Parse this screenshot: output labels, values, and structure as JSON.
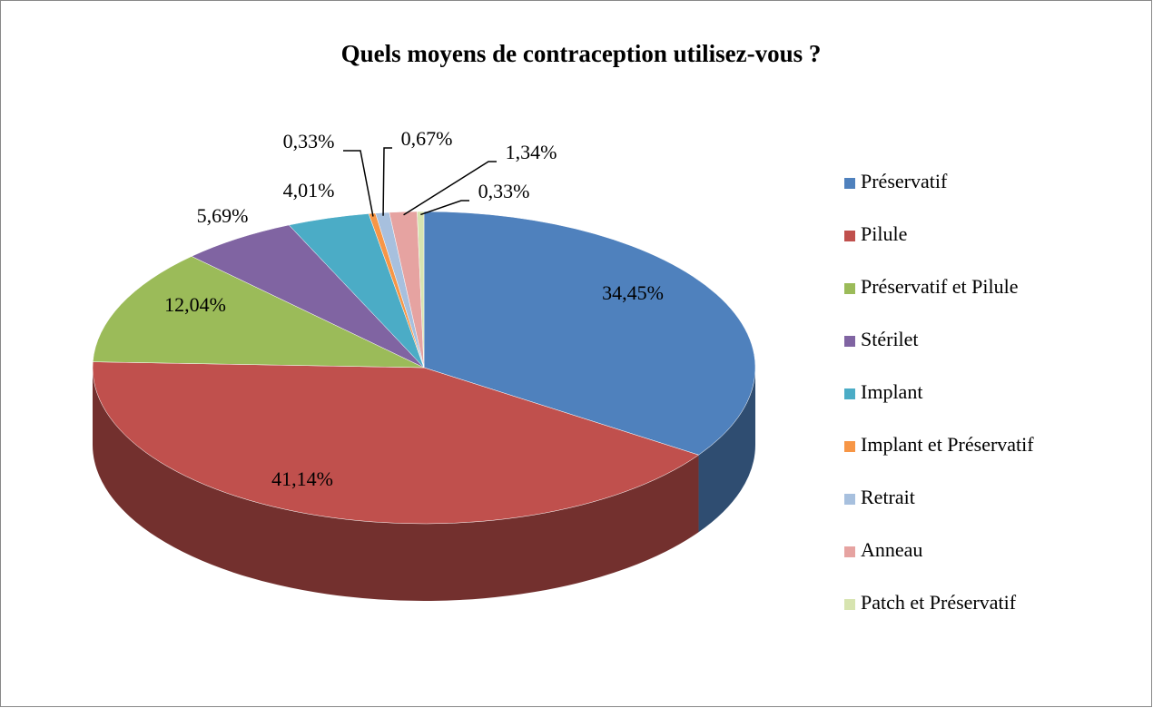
{
  "chart_data": {
    "type": "pie",
    "title": "Quels moyens de contraception utilisez-vous ?",
    "categories": [
      "Préservatif",
      "Pilule",
      "Préservatif et Pilule",
      "Stérilet",
      "Implant",
      "Implant et Préservatif",
      "Retrait",
      "Anneau",
      "Patch et Préservatif"
    ],
    "values": [
      34.45,
      41.14,
      12.04,
      5.69,
      4.01,
      0.33,
      0.67,
      1.34,
      0.33
    ],
    "value_labels": [
      "34,45%",
      "41,14%",
      "12,04%",
      "5,69%",
      "4,01%",
      "0,33%",
      "0,67%",
      "1,34%",
      "0,33%"
    ],
    "colors": [
      "#4f81bd",
      "#c0504d",
      "#9bbb59",
      "#8064a2",
      "#4bacc6",
      "#f79646",
      "#a7c0de",
      "#e6a3a1",
      "#d7e4b0"
    ],
    "legend": "right"
  }
}
